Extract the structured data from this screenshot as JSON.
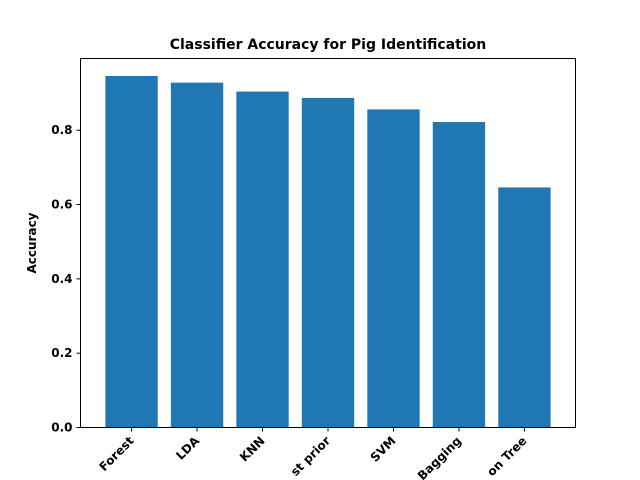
{
  "chart_data": {
    "type": "bar",
    "title": "Classifier Accuracy for Pig Identification",
    "xlabel": "",
    "ylabel": "Accuracy",
    "categories": [
      "Random Forest",
      "LDA",
      "KNN",
      "Bernoulli with best prior",
      "SVM",
      "Bagging",
      "Decision Tree"
    ],
    "visible_tick_labels": [
      "Forest",
      "LDA",
      "KNN",
      "st prior",
      "SVM",
      "Bagging",
      "on Tree"
    ],
    "values": [
      0.946,
      0.928,
      0.904,
      0.887,
      0.856,
      0.822,
      0.646
    ],
    "ylim": [
      0,
      0.993
    ],
    "yticks": [
      0.0,
      0.2,
      0.4,
      0.6,
      0.8
    ],
    "ytick_labels": [
      "0.0",
      "0.2",
      "0.4",
      "0.6",
      "0.8"
    ],
    "bar_color": "#1f77b4",
    "grid": false,
    "legend": "none",
    "xtick_rotation": "45 degrees"
  }
}
